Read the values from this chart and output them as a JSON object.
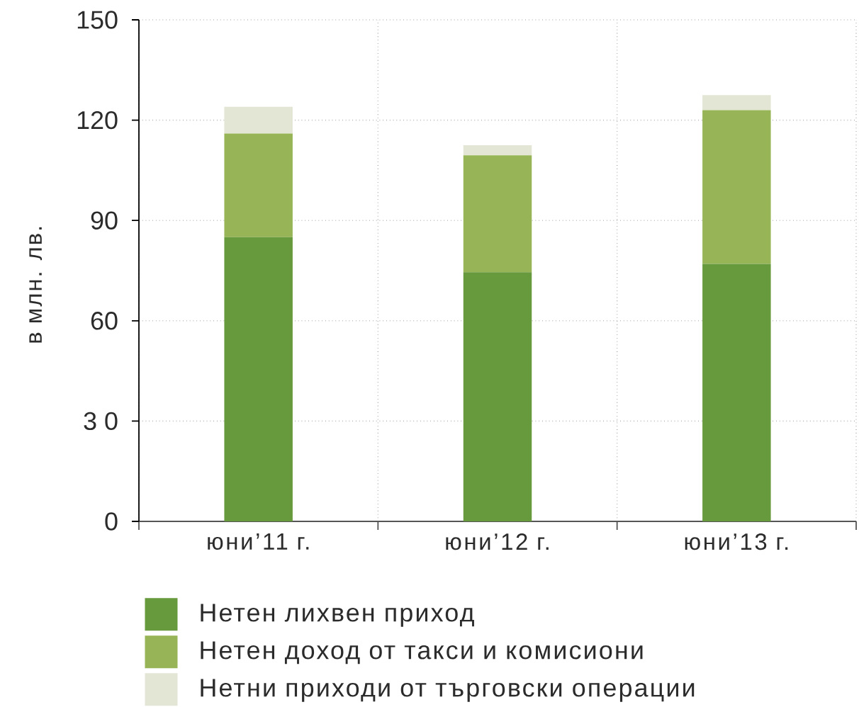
{
  "chart_data": {
    "type": "bar",
    "stacked": true,
    "ylabel": "в млн. лв.",
    "categories": [
      "юни’11 г.",
      "юни’12 г.",
      "юни’13 г."
    ],
    "series": [
      {
        "name": "Нетен лихвен приход",
        "color": "#67993d",
        "values": [
          85,
          74.5,
          77
        ]
      },
      {
        "name": "Нетен доход от такси и комисиони",
        "color": "#97b556",
        "values": [
          31,
          35,
          46
        ]
      },
      {
        "name": "Нетни приходи от търговски операции",
        "color": "#e3e6d4",
        "values": [
          8,
          3,
          4.5
        ]
      }
    ],
    "ylim": [
      0,
      150
    ],
    "yticks": [
      0,
      {
        "value": 30,
        "label": "3 0"
      },
      60,
      90,
      120,
      150
    ],
    "grid": true,
    "legend": "bottom"
  }
}
